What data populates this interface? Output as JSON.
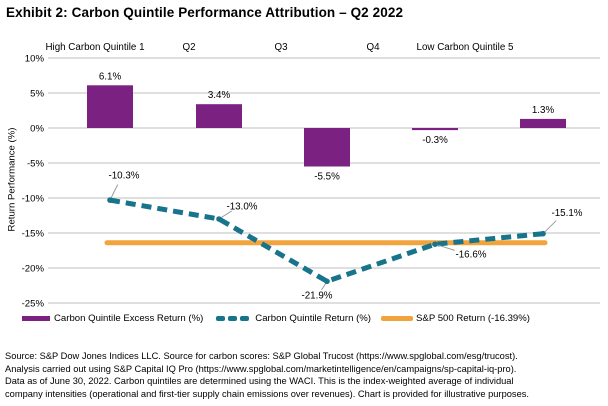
{
  "title": "Exhibit 2: Carbon Quintile Performance Attribution – Q2 2022",
  "chart_data": {
    "type": "bar",
    "subtype": "bar + dashed line + reference hline",
    "categories": [
      "High Carbon Quintile 1",
      "Q2",
      "Q3",
      "Q4",
      "Low Carbon Quintile 5"
    ],
    "series": [
      {
        "name": "Carbon Quintile Excess Return (%)",
        "type": "bar",
        "color": "#7A2182",
        "values": [
          6.1,
          3.4,
          -5.5,
          -0.3,
          1.3
        ],
        "labels": [
          "6.1%",
          "3.4%",
          "-5.5%",
          "-0.3%",
          "1.3%"
        ]
      },
      {
        "name": "Carbon Quintile Return (%)",
        "type": "line",
        "dashed": true,
        "color": "#17748C",
        "values": [
          -10.3,
          -13.0,
          -21.9,
          -16.6,
          -15.1
        ],
        "labels": [
          "-10.3%",
          "-13.0%",
          "-21.9%",
          "-16.6%",
          "-15.1%"
        ]
      },
      {
        "name": "S&P 500 Return (-16.39%)",
        "type": "hline",
        "color": "#F2A43C",
        "value": -16.39
      }
    ],
    "ylabel": "Return Performance (%)",
    "ylim": [
      -25,
      10
    ],
    "ytick_step": 5,
    "ytick_labels": [
      "10%",
      "5%",
      "0%",
      "-5%",
      "-10%",
      "-15%",
      "-20%",
      "-25%"
    ],
    "grid": true,
    "legend_position": "bottom"
  },
  "colors": {
    "grid": "#BFBFBF",
    "leader": "#9B9B9B",
    "text": "#000000"
  },
  "footer": {
    "lines": [
      "Source: S&P Dow Jones Indices LLC. Source for carbon scores: S&P Global Trucost (https://www.spglobal.com/esg/trucost).",
      "Analysis carried out using S&P Capital IQ Pro (https://www.spglobal.com/marketintelligence/en/campaigns/sp-capital-iq-pro).",
      "Data as of June 30, 2022. Carbon quintiles are determined using the WACI. This is the index-weighted average of individual",
      "company intensities (operational and first-tier supply chain emissions over revenues). Chart is provided for illustrative purposes."
    ]
  }
}
